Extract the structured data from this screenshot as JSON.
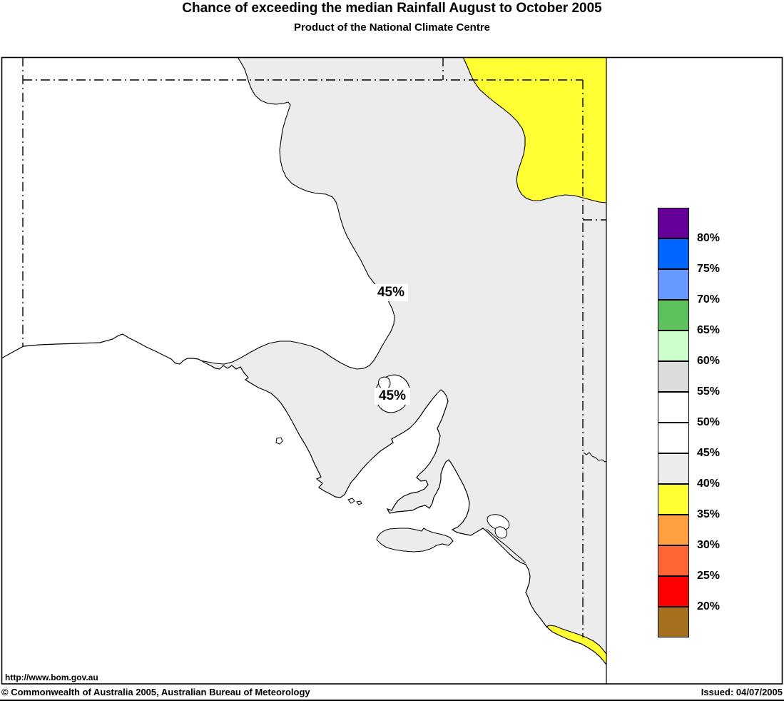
{
  "header": {
    "title": "Chance of exceeding the median Rainfall August to October 2005",
    "subtitle": "Product of the National Climate Centre"
  },
  "map": {
    "url_label": "http://www.bom.gov.au",
    "contour_labels": [
      {
        "text": "45%"
      },
      {
        "text": "45%"
      }
    ],
    "colors": {
      "band_45_50_white": "#FFFFFF",
      "band_40_45_grey": "#ECECEC",
      "band_35_40_yellow": "#FFFF33",
      "ocean": "#FFFFFF",
      "outline": "#000000"
    }
  },
  "legend": {
    "swatch_colors_top_to_bottom": [
      "#660099",
      "#0066FF",
      "#6699FF",
      "#5CC25C",
      "#CCFFCC",
      "#DCDCDC",
      "#FFFFFF",
      "#FFFFFF",
      "#ECECEC",
      "#FFFF33",
      "#FFA040",
      "#FF6633",
      "#FF0000",
      "#A5711F"
    ],
    "boundary_labels_top_to_bottom": [
      "80%",
      "75%",
      "70%",
      "65%",
      "60%",
      "55%",
      "50%",
      "45%",
      "40%",
      "35%",
      "30%",
      "25%",
      "20%"
    ]
  },
  "footer": {
    "copyright": "© Commonwealth of Australia 2005, Australian Bureau of Meteorology",
    "issued": "Issued: 04/07/2005"
  }
}
